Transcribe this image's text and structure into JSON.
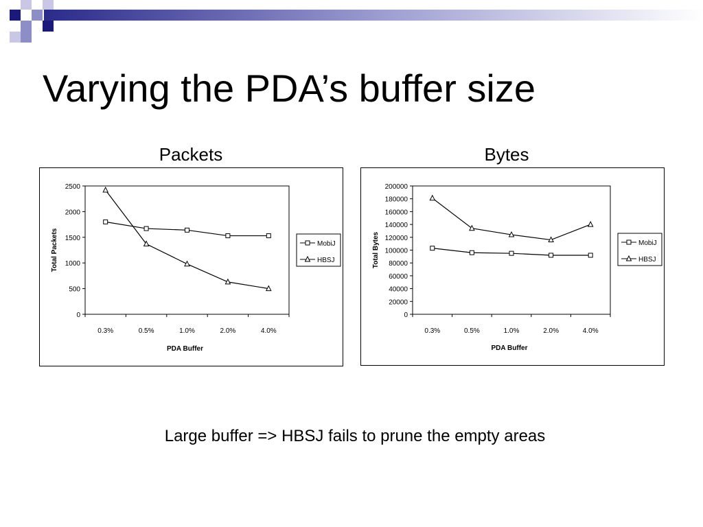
{
  "slide": {
    "title": "Varying the PDA’s buffer size",
    "footnote": "Large buffer => HBSJ fails to prune the empty areas",
    "colors": {
      "deco_dark": "#1a1a7a",
      "deco_mid": "#8e8ec6",
      "deco_light": "#c8c8e6"
    }
  },
  "chart_data": [
    {
      "type": "line",
      "title": "Packets",
      "xlabel": "PDA Buffer",
      "ylabel": "Total Packets",
      "categories": [
        "0.3%",
        "0.5%",
        "1.0%",
        "2.0%",
        "4.0%"
      ],
      "ylim": [
        0,
        2500
      ],
      "yticks": [
        "0",
        "500",
        "1000",
        "1500",
        "2000",
        "2500"
      ],
      "grid": false,
      "legend_position": "right",
      "series": [
        {
          "name": "MobiJ",
          "marker": "square",
          "values": [
            1800,
            1670,
            1640,
            1530,
            1530
          ]
        },
        {
          "name": "HBSJ",
          "marker": "triangle",
          "values": [
            2420,
            1370,
            980,
            630,
            500
          ]
        }
      ]
    },
    {
      "type": "line",
      "title": "Bytes",
      "xlabel": "PDA Buffer",
      "ylabel": "Total Bytes",
      "categories": [
        "0.3%",
        "0.5%",
        "1.0%",
        "2.0%",
        "4.0%"
      ],
      "ylim": [
        0,
        200000
      ],
      "yticks": [
        "0",
        "20000",
        "40000",
        "60000",
        "80000",
        "100000",
        "120000",
        "140000",
        "160000",
        "180000",
        "200000"
      ],
      "grid": false,
      "legend_position": "right",
      "series": [
        {
          "name": "MobiJ",
          "marker": "square",
          "values": [
            103000,
            96000,
            95000,
            92000,
            92000
          ]
        },
        {
          "name": "HBSJ",
          "marker": "triangle",
          "values": [
            181000,
            134000,
            124000,
            116000,
            140000
          ]
        }
      ]
    }
  ]
}
